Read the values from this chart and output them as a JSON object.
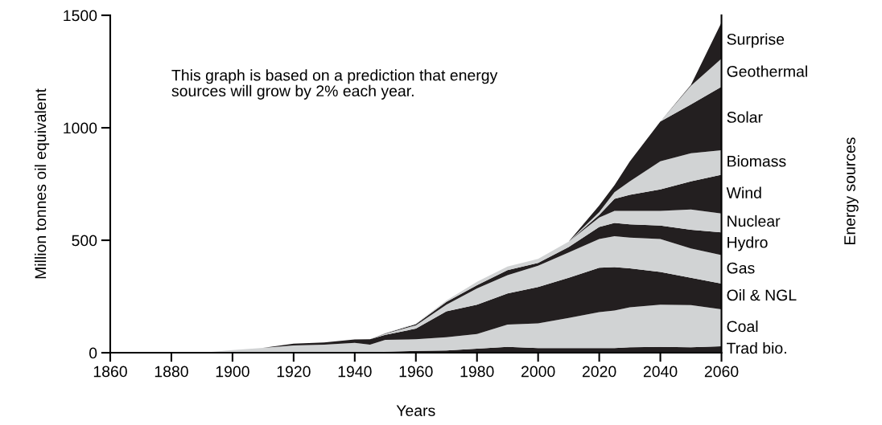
{
  "chart_data": {
    "type": "area",
    "stacked": true,
    "xlabel": "Years",
    "ylabel": "Million tonnes oil equivalent",
    "annotations": [
      "This graph is based on a prediction that energy sources will grow by 2% each year.",
      "Energy sources"
    ],
    "x": [
      1860,
      1890,
      1900,
      1910,
      1920,
      1930,
      1940,
      1945,
      1950,
      1960,
      1970,
      1980,
      1990,
      2000,
      2010,
      2020,
      2025,
      2030,
      2040,
      2050,
      2060
    ],
    "xlim": [
      1860,
      2060
    ],
    "xticks": [
      1860,
      1880,
      1900,
      1920,
      1940,
      1960,
      1980,
      2000,
      2020,
      2040,
      2060
    ],
    "ylim": [
      0,
      1500
    ],
    "yticks": [
      0,
      500,
      1000,
      1500
    ],
    "grid": false,
    "legend": false,
    "series": [
      {
        "name": "Trad bio.",
        "color": "#231f20",
        "values": [
          null,
          null,
          null,
          null,
          null,
          null,
          null,
          0,
          5,
          8,
          10,
          18,
          26,
          21,
          21,
          21,
          21,
          24,
          26,
          24,
          29
        ]
      },
      {
        "name": "Coal",
        "color": "#d1d3d4",
        "values": [
          0,
          0,
          12,
          22,
          32,
          36,
          44,
          36,
          52,
          52,
          59,
          65,
          99,
          110,
          134,
          160,
          167,
          178,
          188,
          188,
          164
        ]
      },
      {
        "name": "Oil & NGL",
        "color": "#231f20",
        "values": [
          null,
          null,
          null,
          0,
          8,
          10,
          15,
          24,
          23,
          47,
          115,
          131,
          139,
          161,
          178,
          197,
          193,
          173,
          145,
          121,
          114
        ]
      },
      {
        "name": "Gas",
        "color": "#d1d3d4",
        "values": [
          null,
          null,
          null,
          null,
          null,
          null,
          null,
          0,
          4,
          15,
          30,
          72,
          81,
          95,
          113,
          128,
          137,
          137,
          147,
          131,
          127
        ]
      },
      {
        "name": "Hydro",
        "color": "#231f20",
        "values": [
          null,
          null,
          null,
          null,
          null,
          null,
          null,
          0,
          2,
          5,
          12,
          14,
          22,
          12,
          24,
          53,
          59,
          59,
          59,
          83,
          101
        ]
      },
      {
        "name": "Nuclear",
        "color": "#d1d3d4",
        "values": [
          null,
          null,
          null,
          null,
          null,
          null,
          null,
          0,
          2,
          3,
          6,
          15,
          16,
          18,
          24,
          42,
          54,
          60,
          66,
          90,
          84
        ]
      },
      {
        "name": "Wind",
        "color": "#231f20",
        "values": [
          null,
          null,
          null,
          null,
          null,
          null,
          null,
          null,
          null,
          null,
          null,
          null,
          null,
          null,
          0,
          12,
          53,
          71,
          95,
          125,
          172
        ]
      },
      {
        "name": "Biomass",
        "color": "#d1d3d4",
        "values": [
          null,
          null,
          null,
          null,
          null,
          null,
          null,
          null,
          null,
          null,
          null,
          null,
          null,
          null,
          0,
          12,
          30,
          60,
          125,
          125,
          109
        ]
      },
      {
        "name": "Solar",
        "color": "#231f20",
        "values": [
          null,
          null,
          null,
          null,
          null,
          null,
          null,
          null,
          null,
          null,
          null,
          null,
          null,
          null,
          0,
          30,
          31,
          88,
          177,
          217,
          282
        ]
      },
      {
        "name": "Geothermal",
        "color": "#d1d3d4",
        "values": [
          null,
          null,
          null,
          null,
          null,
          null,
          null,
          null,
          null,
          null,
          null,
          null,
          null,
          null,
          null,
          null,
          null,
          null,
          0,
          83,
          125
        ]
      },
      {
        "name": "Surprise",
        "color": "#231f20",
        "values": [
          null,
          null,
          null,
          null,
          null,
          null,
          null,
          null,
          null,
          null,
          null,
          null,
          null,
          null,
          null,
          null,
          null,
          null,
          0,
          3,
          161
        ]
      }
    ]
  }
}
